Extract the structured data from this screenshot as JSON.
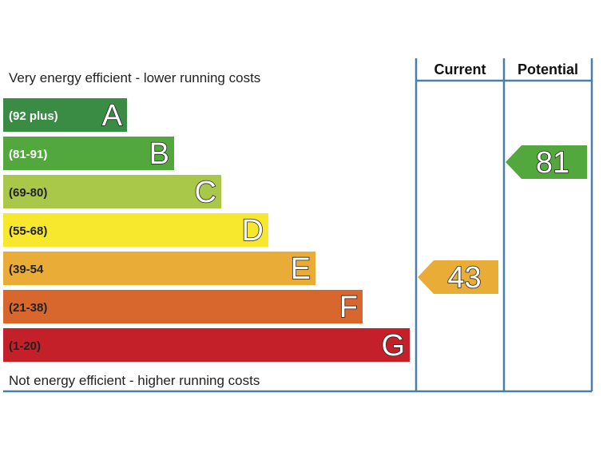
{
  "chart_data": {
    "type": "bar",
    "top_caption": "Very energy efficient - lower running costs",
    "bottom_caption": "Not energy efficient - higher running costs",
    "columns": {
      "current": "Current",
      "potential": "Potential"
    },
    "bands": [
      {
        "letter": "A",
        "range": "(92 plus)",
        "color": "#3a8c44",
        "dark_text": false
      },
      {
        "letter": "B",
        "range": "(81-91)",
        "color": "#52a83c",
        "dark_text": false
      },
      {
        "letter": "C",
        "range": "(69-80)",
        "color": "#a9c84a",
        "dark_text": true
      },
      {
        "letter": "D",
        "range": "(55-68)",
        "color": "#f7e72d",
        "dark_text": true
      },
      {
        "letter": "E",
        "range": "(39-54",
        "color": "#e9ac36",
        "dark_text": true
      },
      {
        "letter": "F",
        "range": "(21-38)",
        "color": "#d7672c",
        "dark_text": true
      },
      {
        "letter": "G",
        "range": "(1-20)",
        "color": "#c32029",
        "dark_text": true
      }
    ],
    "current": {
      "value": "43",
      "band": "E",
      "color": "#e9ac36"
    },
    "potential": {
      "value": "81",
      "band": "B",
      "color": "#52a83c"
    },
    "frame_color": "#4a7fa5"
  }
}
